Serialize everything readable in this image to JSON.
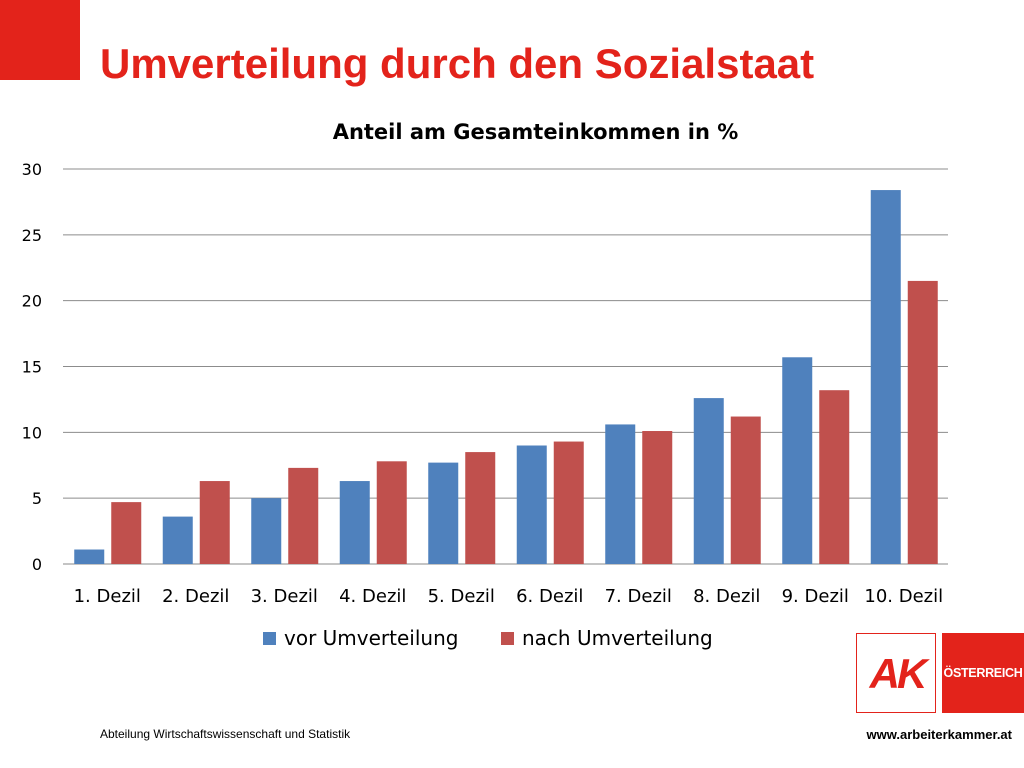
{
  "slide": {
    "title": "Umverteilung durch den Sozialstaat",
    "footer_left": "Abteilung Wirtschaftswissenschaft und Statistik",
    "footer_right": "www.arbeiterkammer.at",
    "logo": {
      "ak_text": "AK",
      "country_text": "ÖSTERREICH"
    },
    "colors": {
      "accent": "#e3231b"
    }
  },
  "chart_data": {
    "type": "bar",
    "title": "Anteil am Gesamteinkommen in %",
    "xlabel": "",
    "ylabel": "",
    "categories": [
      "1. Dezil",
      "2. Dezil",
      "3. Dezil",
      "4. Dezil",
      "5. Dezil",
      "6. Dezil",
      "7. Dezil",
      "8. Dezil",
      "9. Dezil",
      "10. Dezil"
    ],
    "series": [
      {
        "name": "vor Umverteilung",
        "color": "#4f81bd",
        "values": [
          1.1,
          3.6,
          5.0,
          6.3,
          7.7,
          9.0,
          10.6,
          12.6,
          15.7,
          28.4
        ]
      },
      {
        "name": "nach Umverteilung",
        "color": "#c0504d",
        "values": [
          4.7,
          6.3,
          7.3,
          7.8,
          8.5,
          9.3,
          10.1,
          11.2,
          13.2,
          21.5
        ]
      }
    ],
    "ylim": [
      0,
      30
    ],
    "yticks": [
      0,
      5,
      10,
      15,
      20,
      25,
      30
    ],
    "grid": true,
    "legend": "bottom"
  }
}
